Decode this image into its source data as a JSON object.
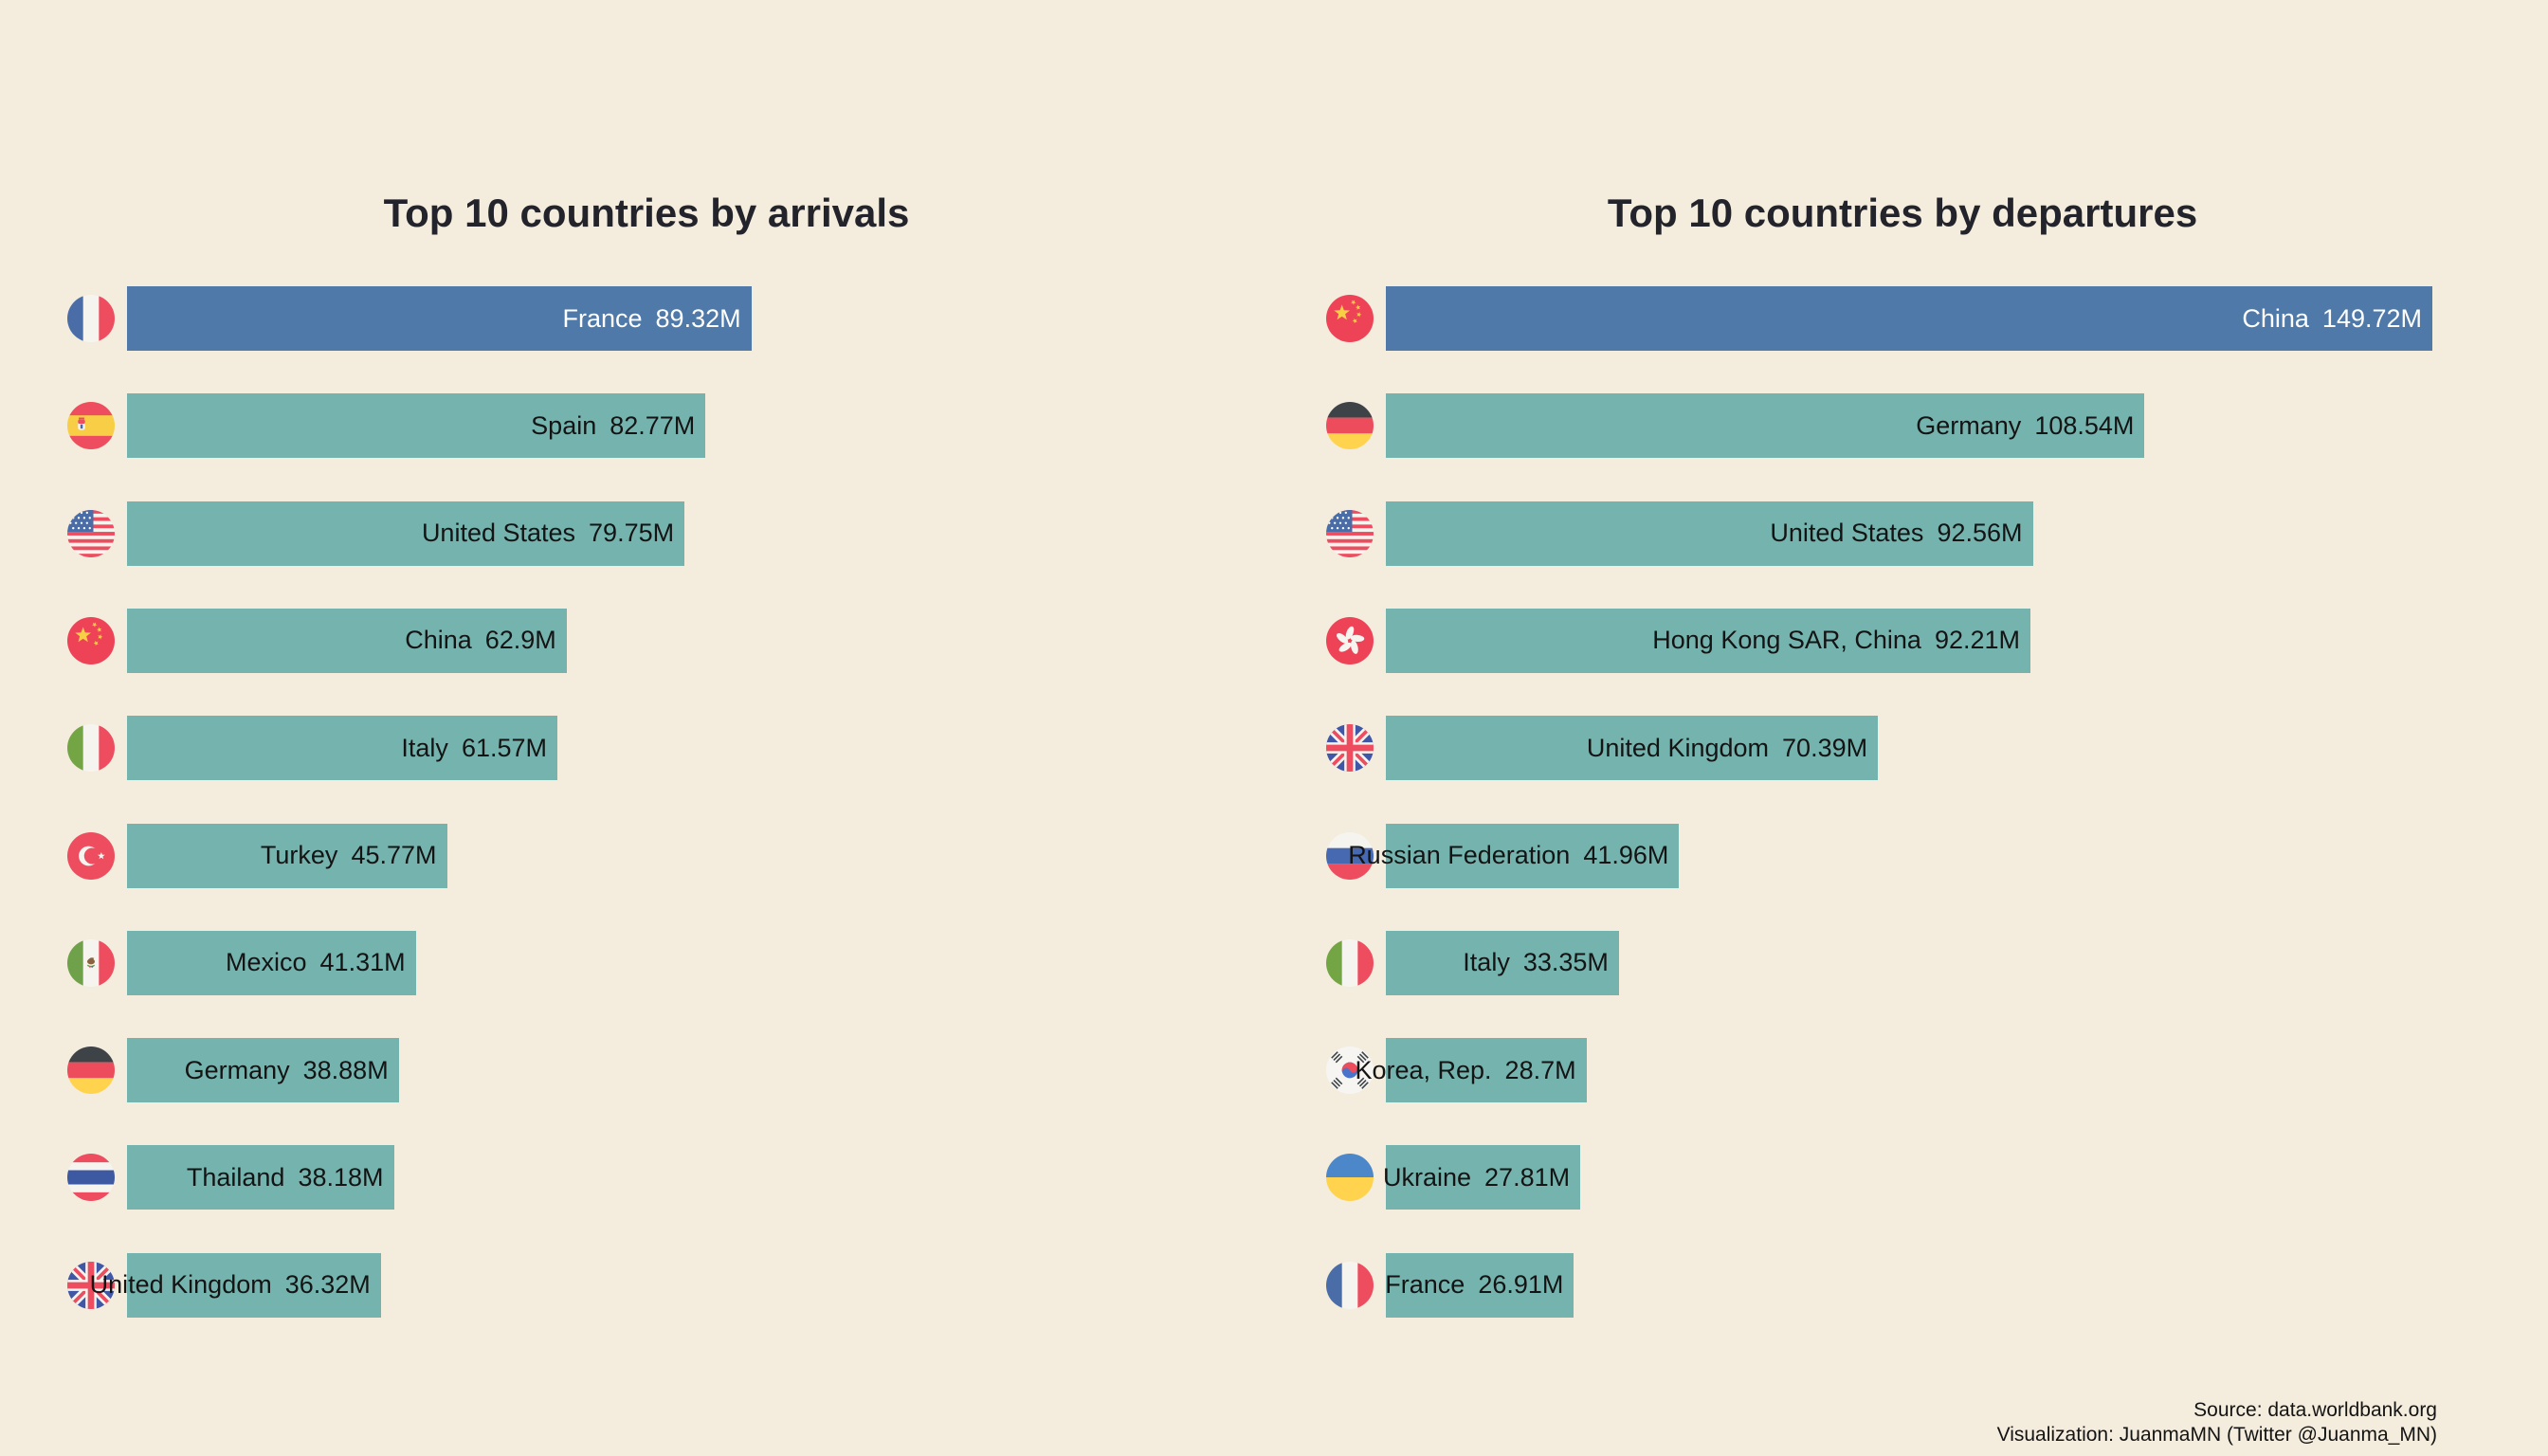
{
  "colors": {
    "background": "#f4ecdd",
    "highlight_bar": "#4e79a8",
    "bar": "#75b4ae",
    "label_on_highlight": "#ffffff",
    "label": "#141414",
    "title": "#23242b"
  },
  "charts": [
    {
      "title": "Top 10 countries by arrivals",
      "rows": [
        {
          "country": "France",
          "value": 89.32,
          "label": "89.32M",
          "flag": "france",
          "highlight": true
        },
        {
          "country": "Spain",
          "value": 82.77,
          "label": "82.77M",
          "flag": "spain",
          "highlight": false
        },
        {
          "country": "United States",
          "value": 79.75,
          "label": "79.75M",
          "flag": "usa",
          "highlight": false
        },
        {
          "country": "China",
          "value": 62.9,
          "label": "62.9M",
          "flag": "china",
          "highlight": false
        },
        {
          "country": "Italy",
          "value": 61.57,
          "label": "61.57M",
          "flag": "italy",
          "highlight": false
        },
        {
          "country": "Turkey",
          "value": 45.77,
          "label": "45.77M",
          "flag": "turkey",
          "highlight": false
        },
        {
          "country": "Mexico",
          "value": 41.31,
          "label": "41.31M",
          "flag": "mexico",
          "highlight": false
        },
        {
          "country": "Germany",
          "value": 38.88,
          "label": "38.88M",
          "flag": "germany",
          "highlight": false
        },
        {
          "country": "Thailand",
          "value": 38.18,
          "label": "38.18M",
          "flag": "thailand",
          "highlight": false
        },
        {
          "country": "United Kingdom",
          "value": 36.32,
          "label": "36.32M",
          "flag": "uk",
          "highlight": false
        }
      ]
    },
    {
      "title": "Top 10 countries by departures",
      "rows": [
        {
          "country": "China",
          "value": 149.72,
          "label": "149.72M",
          "flag": "china",
          "highlight": true
        },
        {
          "country": "Germany",
          "value": 108.54,
          "label": "108.54M",
          "flag": "germany",
          "highlight": false
        },
        {
          "country": "United States",
          "value": 92.56,
          "label": "92.56M",
          "flag": "usa",
          "highlight": false
        },
        {
          "country": "Hong Kong SAR, China",
          "value": 92.21,
          "label": "92.21M",
          "flag": "hongkong",
          "highlight": false
        },
        {
          "country": "United Kingdom",
          "value": 70.39,
          "label": "70.39M",
          "flag": "uk",
          "highlight": false
        },
        {
          "country": "Russian Federation",
          "value": 41.96,
          "label": "41.96M",
          "flag": "russia",
          "highlight": false
        },
        {
          "country": "Italy",
          "value": 33.35,
          "label": "33.35M",
          "flag": "italy",
          "highlight": false
        },
        {
          "country": "Korea, Rep.",
          "value": 28.7,
          "label": "28.7M",
          "flag": "korea",
          "highlight": false
        },
        {
          "country": "Ukraine",
          "value": 27.81,
          "label": "27.81M",
          "flag": "ukraine",
          "highlight": false
        },
        {
          "country": "France",
          "value": 26.91,
          "label": "26.91M",
          "flag": "france",
          "highlight": false
        }
      ]
    }
  ],
  "footer": {
    "line1": "Source: data.worldbank.org",
    "line2": "Visualization: JuanmaMN (Twitter @Juanma_MN)"
  },
  "chart_data": [
    {
      "type": "bar",
      "orientation": "horizontal",
      "title": "Top 10 countries by arrivals",
      "categories": [
        "France",
        "Spain",
        "United States",
        "China",
        "Italy",
        "Turkey",
        "Mexico",
        "Germany",
        "Thailand",
        "United Kingdom"
      ],
      "values": [
        89.32,
        82.77,
        79.75,
        62.9,
        61.57,
        45.77,
        41.31,
        38.88,
        38.18,
        36.32
      ],
      "unit": "millions of people",
      "value_suffix": "M",
      "xlabel": "",
      "ylabel": "",
      "xlim": [
        0,
        155
      ],
      "grid": false,
      "legend": "none",
      "bar_colors": {
        "first": "#4e79a8",
        "rest": "#75b4ae"
      },
      "annotations": "country name and value printed inside right end of each bar; circular flag icon left of each bar"
    },
    {
      "type": "bar",
      "orientation": "horizontal",
      "title": "Top 10 countries by departures",
      "categories": [
        "China",
        "Germany",
        "United States",
        "Hong Kong SAR, China",
        "United Kingdom",
        "Russian Federation",
        "Italy",
        "Korea, Rep.",
        "Ukraine",
        "France"
      ],
      "values": [
        149.72,
        108.54,
        92.56,
        92.21,
        70.39,
        41.96,
        33.35,
        28.7,
        27.81,
        26.91
      ],
      "unit": "millions of people",
      "value_suffix": "M",
      "xlabel": "",
      "ylabel": "",
      "xlim": [
        0,
        155
      ],
      "grid": false,
      "legend": "none",
      "bar_colors": {
        "first": "#4e79a8",
        "rest": "#75b4ae"
      },
      "annotations": "country name and value printed inside right end of each bar; circular flag icon left of each bar"
    }
  ]
}
